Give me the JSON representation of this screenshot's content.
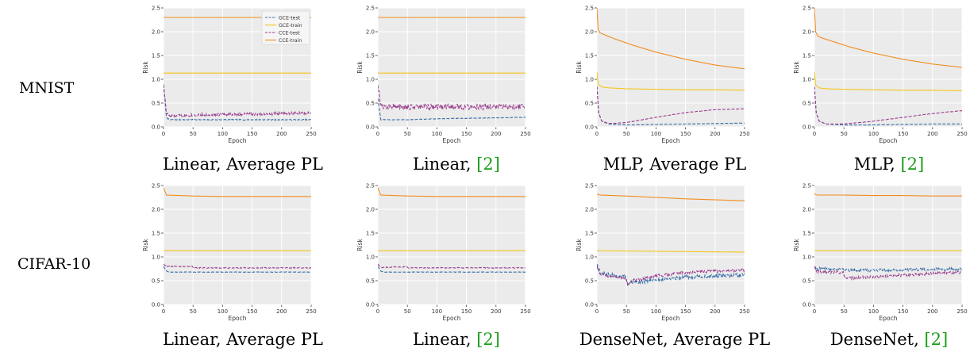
{
  "row_labels": [
    "MNIST",
    "CIFAR-10"
  ],
  "colors": {
    "gce_test": "#3a6fa8",
    "gce_train": "#f5c518",
    "cce_test": "#9b3f8f",
    "cce_train": "#f28c1e",
    "plot_bg": "#ebebeb",
    "grid": "#ffffff",
    "cite": "#1a9e1a"
  },
  "legend": [
    "GCE-test",
    "GCE-train",
    "CCE-test",
    "CCE-train"
  ],
  "legend_placement": "top-right",
  "chart_data": [
    {
      "type": "line",
      "caption_main": "Linear, Average PL",
      "caption_cite": "",
      "xlabel": "Epoch",
      "ylabel": "Risk",
      "xlim": [
        0,
        250
      ],
      "ylim": [
        0,
        2.5
      ],
      "xticks": [
        "0",
        "50",
        "100",
        "150",
        "200",
        "250"
      ],
      "yticks": [
        "0.0",
        "0.5",
        "1.0",
        "1.5",
        "2.0",
        "2.5"
      ],
      "grid": true,
      "legend": true,
      "series": [
        {
          "name": "GCE-test",
          "x": [
            0,
            5,
            10,
            50,
            100,
            150,
            200,
            250
          ],
          "y": [
            0.9,
            0.2,
            0.15,
            0.15,
            0.15,
            0.15,
            0.15,
            0.15
          ],
          "noise": 0.01
        },
        {
          "name": "GCE-train",
          "x": [
            0,
            250
          ],
          "y": [
            1.13,
            1.13
          ],
          "noise": 0
        },
        {
          "name": "CCE-test",
          "x": [
            0,
            5,
            10,
            50,
            100,
            150,
            200,
            250
          ],
          "y": [
            0.9,
            0.28,
            0.23,
            0.25,
            0.26,
            0.27,
            0.28,
            0.29
          ],
          "noise": 0.03
        },
        {
          "name": "CCE-train",
          "x": [
            0,
            250
          ],
          "y": [
            2.3,
            2.3
          ],
          "noise": 0
        }
      ]
    },
    {
      "type": "line",
      "caption_main": "Linear, ",
      "caption_cite": "[2]",
      "xlabel": "Epoch",
      "ylabel": "Risk",
      "xlim": [
        0,
        250
      ],
      "ylim": [
        0,
        2.5
      ],
      "xticks": [
        "0",
        "50",
        "100",
        "150",
        "200",
        "250"
      ],
      "yticks": [
        "0.0",
        "0.5",
        "1.0",
        "1.5",
        "2.0",
        "2.5"
      ],
      "grid": true,
      "legend": false,
      "series": [
        {
          "name": "GCE-test",
          "x": [
            0,
            5,
            10,
            50,
            100,
            150,
            200,
            250
          ],
          "y": [
            0.6,
            0.15,
            0.15,
            0.15,
            0.17,
            0.18,
            0.19,
            0.2
          ],
          "noise": 0.005
        },
        {
          "name": "GCE-train",
          "x": [
            0,
            250
          ],
          "y": [
            1.13,
            1.13
          ],
          "noise": 0
        },
        {
          "name": "CCE-test",
          "x": [
            0,
            5,
            10,
            50,
            100,
            150,
            200,
            250
          ],
          "y": [
            0.9,
            0.45,
            0.42,
            0.42,
            0.42,
            0.42,
            0.42,
            0.42
          ],
          "noise": 0.06
        },
        {
          "name": "CCE-train",
          "x": [
            0,
            250
          ],
          "y": [
            2.3,
            2.3
          ],
          "noise": 0
        }
      ]
    },
    {
      "type": "line",
      "caption_main": "MLP, Average PL",
      "caption_cite": "",
      "xlabel": "Epoch",
      "ylabel": "Risk",
      "xlim": [
        0,
        250
      ],
      "ylim": [
        0,
        2.5
      ],
      "xticks": [
        "0",
        "50",
        "100",
        "150",
        "200",
        "250"
      ],
      "yticks": [
        "0.0",
        "0.5",
        "1.0",
        "1.5",
        "2.0",
        "2.5"
      ],
      "grid": true,
      "legend": false,
      "series": [
        {
          "name": "GCE-test",
          "x": [
            0,
            3,
            8,
            20,
            50,
            100,
            150,
            200,
            250
          ],
          "y": [
            0.85,
            0.3,
            0.12,
            0.06,
            0.04,
            0.05,
            0.06,
            0.07,
            0.08
          ],
          "noise": 0.003
        },
        {
          "name": "GCE-train",
          "x": [
            0,
            2,
            8,
            20,
            50,
            100,
            150,
            200,
            250
          ],
          "y": [
            1.15,
            0.9,
            0.84,
            0.82,
            0.8,
            0.79,
            0.78,
            0.78,
            0.77
          ],
          "noise": 0
        },
        {
          "name": "CCE-test",
          "x": [
            0,
            3,
            8,
            20,
            50,
            100,
            150,
            200,
            250
          ],
          "y": [
            0.85,
            0.3,
            0.12,
            0.07,
            0.09,
            0.2,
            0.3,
            0.36,
            0.38
          ],
          "noise": 0.004
        },
        {
          "name": "CCE-train",
          "x": [
            0,
            2,
            5,
            10,
            30,
            60,
            100,
            150,
            200,
            250
          ],
          "y": [
            2.5,
            2.05,
            1.98,
            1.95,
            1.85,
            1.72,
            1.57,
            1.42,
            1.3,
            1.22
          ],
          "noise": 0
        }
      ]
    },
    {
      "type": "line",
      "caption_main": "MLP, ",
      "caption_cite": "[2]",
      "xlabel": "Epoch",
      "ylabel": "Risk",
      "xlim": [
        0,
        250
      ],
      "ylim": [
        0,
        2.5
      ],
      "xticks": [
        "0",
        "50",
        "100",
        "150",
        "200",
        "250"
      ],
      "yticks": [
        "0.0",
        "0.5",
        "1.0",
        "1.5",
        "2.0",
        "2.5"
      ],
      "grid": true,
      "legend": false,
      "series": [
        {
          "name": "GCE-test",
          "x": [
            0,
            3,
            8,
            20,
            50,
            100,
            150,
            200,
            250
          ],
          "y": [
            0.85,
            0.3,
            0.12,
            0.06,
            0.04,
            0.04,
            0.05,
            0.06,
            0.06
          ],
          "noise": 0.003
        },
        {
          "name": "GCE-train",
          "x": [
            0,
            2,
            8,
            20,
            50,
            100,
            150,
            200,
            250
          ],
          "y": [
            1.15,
            0.88,
            0.82,
            0.8,
            0.79,
            0.78,
            0.77,
            0.77,
            0.76
          ],
          "noise": 0
        },
        {
          "name": "CCE-test",
          "x": [
            0,
            3,
            8,
            20,
            50,
            100,
            150,
            200,
            250
          ],
          "y": [
            0.85,
            0.3,
            0.12,
            0.06,
            0.06,
            0.12,
            0.2,
            0.28,
            0.34
          ],
          "noise": 0.004
        },
        {
          "name": "CCE-train",
          "x": [
            0,
            2,
            5,
            10,
            30,
            60,
            100,
            150,
            200,
            250
          ],
          "y": [
            2.5,
            2.0,
            1.92,
            1.88,
            1.8,
            1.68,
            1.55,
            1.42,
            1.32,
            1.25
          ],
          "noise": 0
        }
      ]
    },
    {
      "type": "line",
      "caption_main": "Linear, Average PL",
      "caption_cite": "",
      "xlabel": "Epoch",
      "ylabel": "Risk",
      "xlim": [
        0,
        250
      ],
      "ylim": [
        0,
        2.5
      ],
      "xticks": [
        "0",
        "50",
        "100",
        "150",
        "200",
        "250"
      ],
      "yticks": [
        "0.0",
        "0.5",
        "1.0",
        "1.5",
        "2.0",
        "2.5"
      ],
      "grid": true,
      "legend": false,
      "series": [
        {
          "name": "GCE-test",
          "x": [
            0,
            5,
            10,
            50,
            100,
            150,
            200,
            250
          ],
          "y": [
            0.8,
            0.7,
            0.68,
            0.68,
            0.68,
            0.68,
            0.68,
            0.68
          ],
          "noise": 0.005
        },
        {
          "name": "GCE-train",
          "x": [
            0,
            250
          ],
          "y": [
            1.13,
            1.13
          ],
          "noise": 0
        },
        {
          "name": "CCE-test",
          "x": [
            0,
            5,
            10,
            49,
            51,
            100,
            150,
            200,
            250
          ],
          "y": [
            0.85,
            0.8,
            0.8,
            0.8,
            0.77,
            0.77,
            0.77,
            0.77,
            0.77
          ],
          "noise": 0.01
        },
        {
          "name": "CCE-train",
          "x": [
            0,
            5,
            50,
            100,
            150,
            200,
            250
          ],
          "y": [
            2.45,
            2.3,
            2.28,
            2.27,
            2.27,
            2.27,
            2.27
          ],
          "noise": 0
        }
      ]
    },
    {
      "type": "line",
      "caption_main": "Linear, ",
      "caption_cite": "[2]",
      "xlabel": "Epoch",
      "ylabel": "Risk",
      "xlim": [
        0,
        250
      ],
      "ylim": [
        0,
        2.5
      ],
      "xticks": [
        "0",
        "50",
        "100",
        "150",
        "200",
        "250"
      ],
      "yticks": [
        "0.0",
        "0.5",
        "1.0",
        "1.5",
        "2.0",
        "2.5"
      ],
      "grid": true,
      "legend": false,
      "series": [
        {
          "name": "GCE-test",
          "x": [
            0,
            5,
            10,
            50,
            100,
            150,
            200,
            250
          ],
          "y": [
            0.8,
            0.7,
            0.68,
            0.68,
            0.68,
            0.68,
            0.68,
            0.68
          ],
          "noise": 0.004
        },
        {
          "name": "GCE-train",
          "x": [
            0,
            250
          ],
          "y": [
            1.13,
            1.13
          ],
          "noise": 0
        },
        {
          "name": "CCE-test",
          "x": [
            0,
            5,
            10,
            49,
            51,
            100,
            150,
            200,
            250
          ],
          "y": [
            0.85,
            0.78,
            0.78,
            0.79,
            0.77,
            0.77,
            0.77,
            0.77,
            0.77
          ],
          "noise": 0.008
        },
        {
          "name": "CCE-train",
          "x": [
            0,
            5,
            50,
            100,
            150,
            200,
            250
          ],
          "y": [
            2.45,
            2.3,
            2.28,
            2.27,
            2.27,
            2.27,
            2.27
          ],
          "noise": 0
        }
      ]
    },
    {
      "type": "line",
      "caption_main": "DenseNet, Average PL",
      "caption_cite": "",
      "xlabel": "Epoch",
      "ylabel": "Risk",
      "xlim": [
        0,
        250
      ],
      "ylim": [
        0,
        2.5
      ],
      "xticks": [
        "0",
        "50",
        "100",
        "150",
        "200",
        "250"
      ],
      "yticks": [
        "0.0",
        "0.5",
        "1.0",
        "1.5",
        "2.0",
        "2.5"
      ],
      "grid": true,
      "legend": false,
      "series": [
        {
          "name": "GCE-test",
          "x": [
            0,
            5,
            20,
            49,
            52,
            60,
            100,
            150,
            200,
            250
          ],
          "y": [
            0.85,
            0.68,
            0.62,
            0.58,
            0.4,
            0.45,
            0.52,
            0.58,
            0.6,
            0.62
          ],
          "noise": 0.04
        },
        {
          "name": "GCE-train",
          "x": [
            0,
            250
          ],
          "y": [
            1.13,
            1.1
          ],
          "noise": 0
        },
        {
          "name": "CCE-test",
          "x": [
            0,
            5,
            20,
            49,
            52,
            60,
            100,
            150,
            200,
            250
          ],
          "y": [
            0.82,
            0.65,
            0.6,
            0.55,
            0.4,
            0.5,
            0.6,
            0.67,
            0.7,
            0.72
          ],
          "noise": 0.03
        },
        {
          "name": "CCE-train",
          "x": [
            0,
            5,
            50,
            100,
            150,
            200,
            250
          ],
          "y": [
            2.32,
            2.3,
            2.28,
            2.25,
            2.22,
            2.2,
            2.18
          ],
          "noise": 0
        }
      ]
    },
    {
      "type": "line",
      "caption_main": "DenseNet, ",
      "caption_cite": "[2]",
      "xlabel": "Epoch",
      "ylabel": "Risk",
      "xlim": [
        0,
        250
      ],
      "ylim": [
        0,
        2.5
      ],
      "xticks": [
        "0",
        "50",
        "100",
        "150",
        "200",
        "250"
      ],
      "yticks": [
        "0.0",
        "0.5",
        "1.0",
        "1.5",
        "2.0",
        "2.5"
      ],
      "grid": true,
      "legend": false,
      "series": [
        {
          "name": "GCE-test",
          "x": [
            0,
            5,
            20,
            49,
            52,
            100,
            150,
            200,
            250
          ],
          "y": [
            0.8,
            0.75,
            0.75,
            0.75,
            0.72,
            0.72,
            0.73,
            0.74,
            0.75
          ],
          "noise": 0.03
        },
        {
          "name": "GCE-train",
          "x": [
            0,
            250
          ],
          "y": [
            1.13,
            1.13
          ],
          "noise": 0
        },
        {
          "name": "CCE-test",
          "x": [
            0,
            5,
            20,
            49,
            52,
            100,
            150,
            200,
            250
          ],
          "y": [
            0.78,
            0.68,
            0.68,
            0.68,
            0.55,
            0.58,
            0.62,
            0.65,
            0.68
          ],
          "noise": 0.03
        },
        {
          "name": "CCE-train",
          "x": [
            0,
            5,
            50,
            100,
            150,
            200,
            250
          ],
          "y": [
            2.32,
            2.3,
            2.3,
            2.29,
            2.29,
            2.28,
            2.28
          ],
          "noise": 0
        }
      ]
    }
  ]
}
